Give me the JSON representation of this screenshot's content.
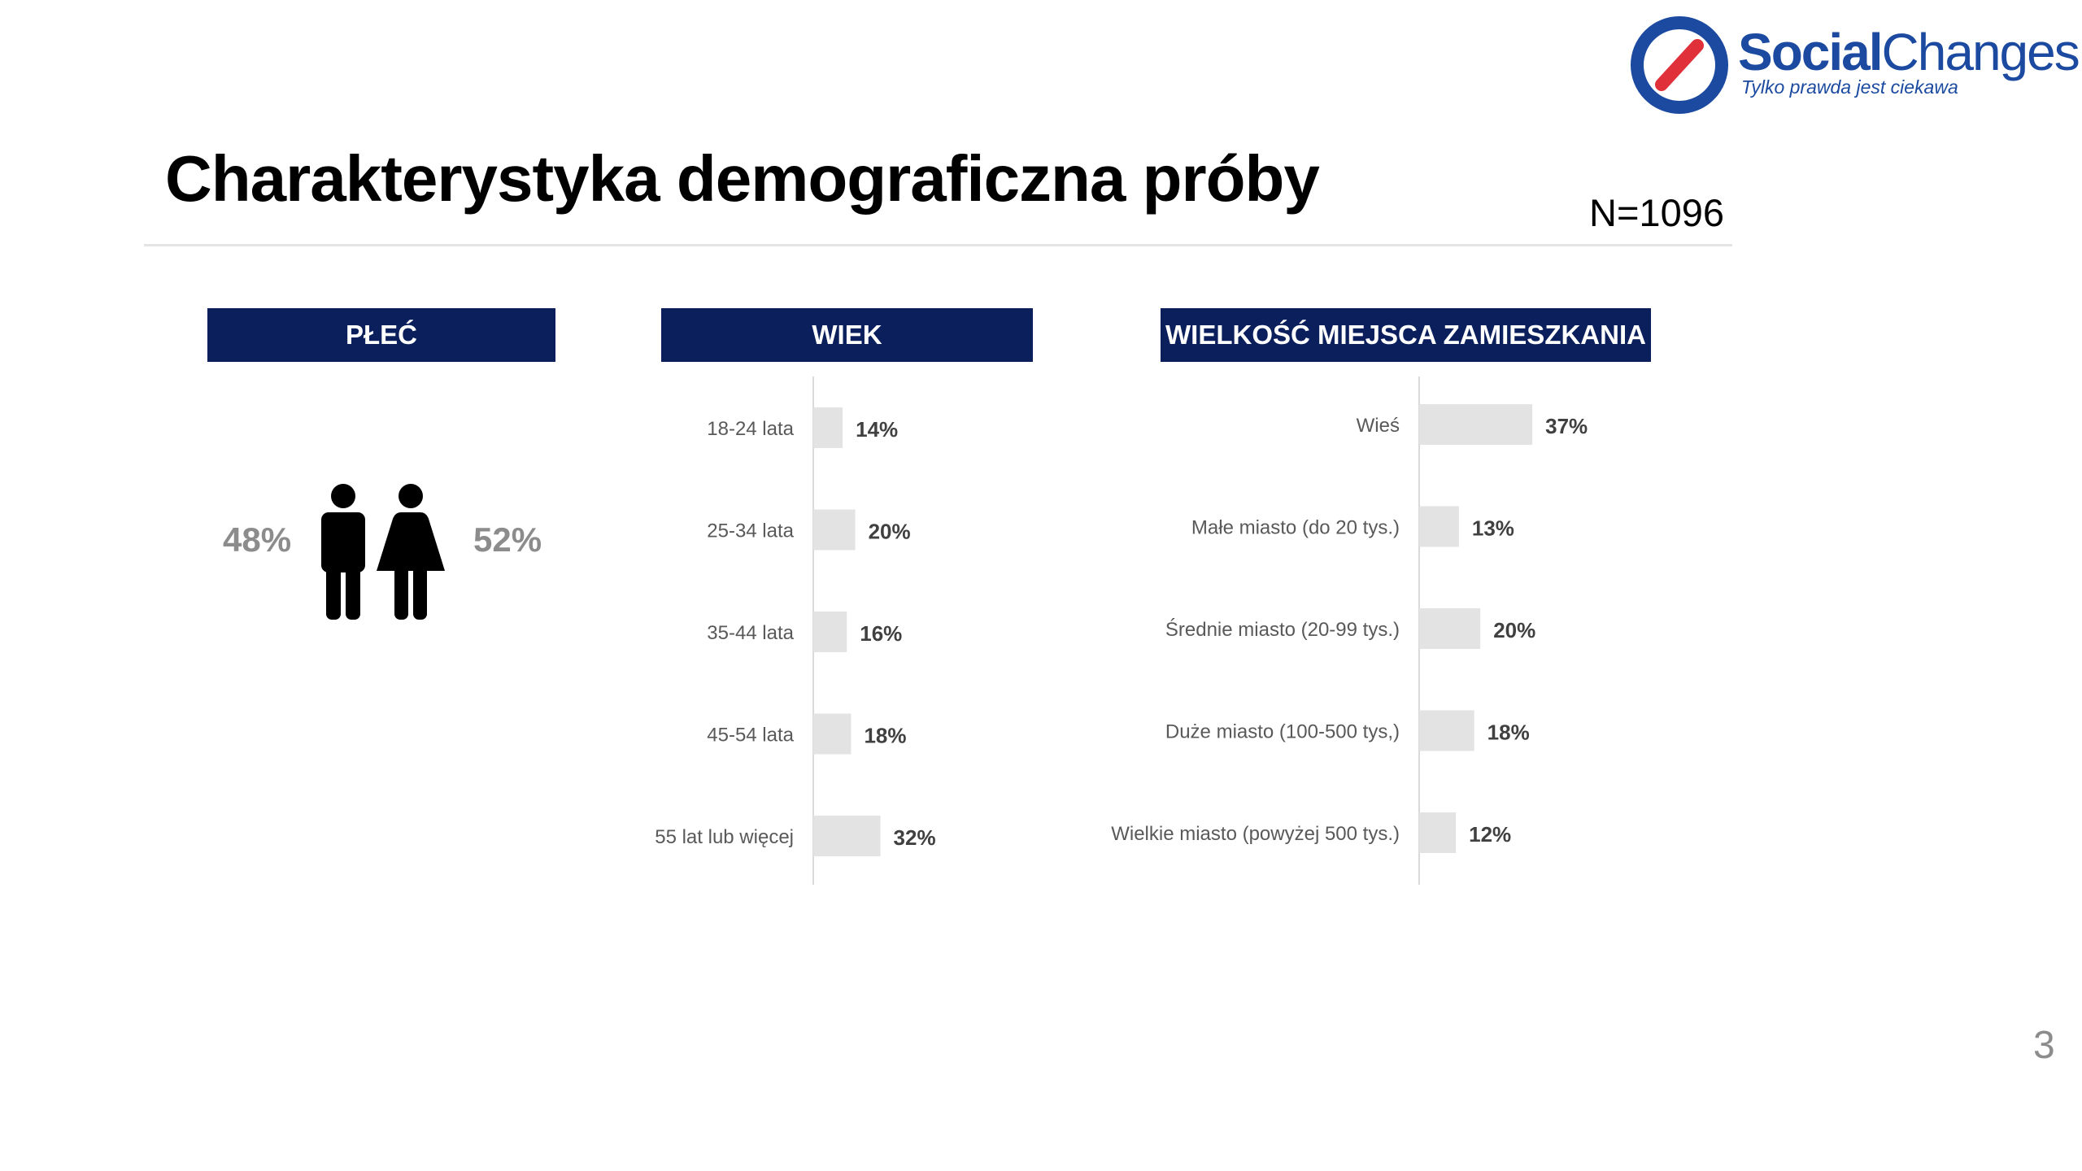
{
  "logo": {
    "name_part1": "Social",
    "name_part2": "Changes",
    "tagline": "Tylko prawda jest ciekawa",
    "icon": "no-sign-icon",
    "colors": {
      "ring": "#1b4aa0",
      "slash": "#e0303a"
    }
  },
  "title": "Charakterystyka demograficzna próby",
  "sample_size": "N=1096",
  "page_number": "3",
  "colors": {
    "header_bg": "#0b1f5c",
    "bar": "#e3e3e3",
    "muted_text": "#8c8c8c"
  },
  "gender": {
    "header": "PŁEĆ",
    "male_pct": "48%",
    "female_pct": "52%",
    "icons": [
      "male-figure-icon",
      "female-figure-icon"
    ]
  },
  "age": {
    "header": "WIEK"
  },
  "city": {
    "header": "WIELKOŚĆ MIEJSCA ZAMIESZKANIA"
  },
  "chart_data": [
    {
      "type": "bar",
      "orientation": "horizontal",
      "title": "PŁEĆ",
      "categories": [
        "Mężczyźni",
        "Kobiety"
      ],
      "values": [
        48,
        52
      ],
      "category_labels_shown": false
    },
    {
      "type": "bar",
      "orientation": "horizontal",
      "title": "WIEK",
      "categories": [
        "18-24 lata",
        "25-34 lata",
        "35-44 lata",
        "45-54 lata",
        "55 lat lub więcej"
      ],
      "values": [
        14,
        20,
        16,
        18,
        32
      ],
      "labels": [
        "14%",
        "20%",
        "16%",
        "18%",
        "32%"
      ],
      "xlim": [
        0,
        100
      ]
    },
    {
      "type": "bar",
      "orientation": "horizontal",
      "title": "WIELKOŚĆ MIEJSCA ZAMIESZKANIA",
      "categories": [
        "Wieś",
        "Małe miasto (do 20 tys.)",
        "Średnie miasto (20-99 tys.)",
        "Duże miasto (100-500 tys,)",
        "Wielkie miasto (powyżej 500 tys.)"
      ],
      "values": [
        37,
        13,
        20,
        18,
        12
      ],
      "labels": [
        "37%",
        "13%",
        "20%",
        "18%",
        "12%"
      ],
      "xlim": [
        0,
        100
      ]
    }
  ]
}
